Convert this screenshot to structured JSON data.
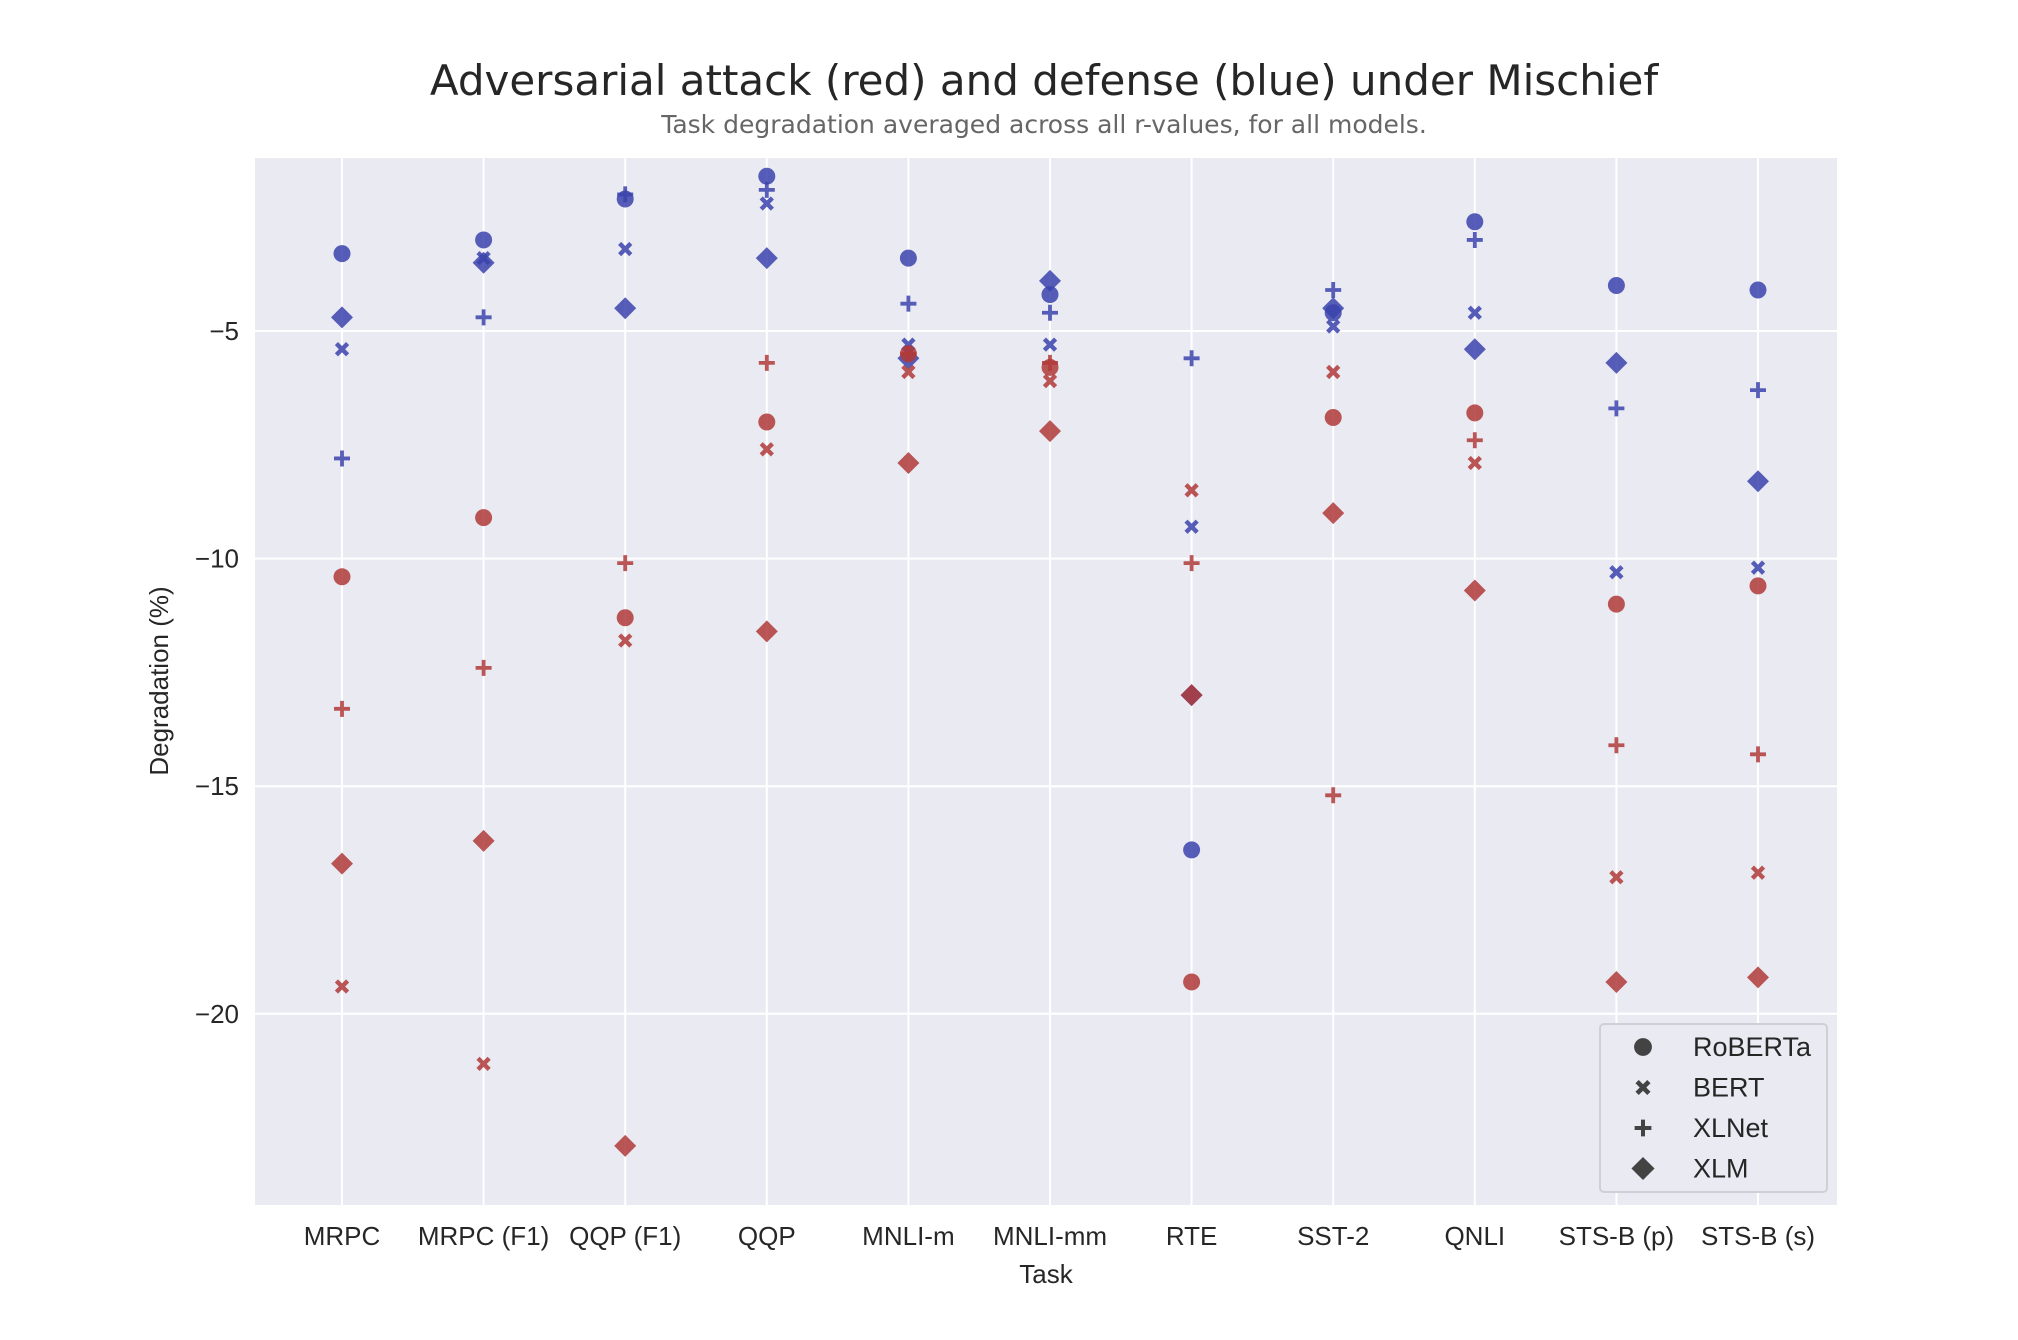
{
  "chart_data": {
    "type": "scatter",
    "title": "Adversarial attack (red) and defense (blue) under Mischief",
    "subtitle": "Task degradation averaged across all r-values, for all models.",
    "xlabel": "Task",
    "ylabel": "Degradation (%)",
    "categories": [
      "MRPC",
      "MRPC (F1)",
      "QQP (F1)",
      "QQP",
      "MNLI-m",
      "MNLI-mm",
      "RTE",
      "SST-2",
      "QNLI",
      "STS-B (p)",
      "STS-B (s)"
    ],
    "ylim": [
      -24.2,
      -1.2
    ],
    "yticks": [
      -5,
      -10,
      -15,
      -20
    ],
    "ytick_labels": [
      "−5",
      "−10",
      "−15",
      "−20"
    ],
    "grid": true,
    "legend_position": "bottom-right",
    "colors": {
      "attack": "#b03a3a",
      "defense": "#3b43ad",
      "background": "#eaeaf2"
    },
    "legend": [
      {
        "name": "RoBERTa",
        "marker": "circle"
      },
      {
        "name": "BERT",
        "marker": "x"
      },
      {
        "name": "XLNet",
        "marker": "plus"
      },
      {
        "name": "XLM",
        "marker": "diamond"
      }
    ],
    "series": [
      {
        "model": "RoBERTa",
        "group": "defense",
        "marker": "circle",
        "values": [
          -3.3,
          -3.0,
          -2.1,
          -1.6,
          -3.4,
          -4.2,
          -16.4,
          -4.6,
          -2.6,
          -4.0,
          -4.1
        ]
      },
      {
        "model": "BERT",
        "group": "defense",
        "marker": "x",
        "values": [
          -5.4,
          -3.4,
          -3.2,
          -2.2,
          -5.3,
          -5.3,
          -9.3,
          -4.9,
          -4.6,
          -10.3,
          -10.2
        ]
      },
      {
        "model": "XLNet",
        "group": "defense",
        "marker": "plus",
        "values": [
          -7.8,
          -4.7,
          -2.0,
          -1.9,
          -4.4,
          -4.6,
          -5.6,
          -4.1,
          -3.0,
          -6.7,
          -6.3
        ]
      },
      {
        "model": "XLM",
        "group": "defense",
        "marker": "diamond",
        "values": [
          -4.7,
          -3.5,
          -4.5,
          -3.4,
          -5.6,
          -3.9,
          -13.0,
          -4.5,
          -5.4,
          -5.7,
          -8.3
        ]
      },
      {
        "model": "RoBERTa",
        "group": "attack",
        "marker": "circle",
        "values": [
          -10.4,
          -9.1,
          -11.3,
          -7.0,
          -5.5,
          -5.8,
          -19.3,
          -6.9,
          -6.8,
          -11.0,
          -10.6
        ]
      },
      {
        "model": "BERT",
        "group": "attack",
        "marker": "x",
        "values": [
          -19.4,
          -21.1,
          -11.8,
          -7.6,
          -5.9,
          -6.1,
          -8.5,
          -5.9,
          -7.9,
          -17.0,
          -16.9
        ]
      },
      {
        "model": "XLNet",
        "group": "attack",
        "marker": "plus",
        "values": [
          -13.3,
          -12.4,
          -10.1,
          -5.7,
          -5.5,
          -5.7,
          -10.1,
          -15.2,
          -7.4,
          -14.1,
          -14.3
        ]
      },
      {
        "model": "XLM",
        "group": "attack",
        "marker": "diamond",
        "values": [
          -16.7,
          -16.2,
          -22.9,
          -11.6,
          -7.9,
          -7.2,
          -13.0,
          -9.0,
          -10.7,
          -19.3,
          -19.2
        ]
      }
    ]
  }
}
